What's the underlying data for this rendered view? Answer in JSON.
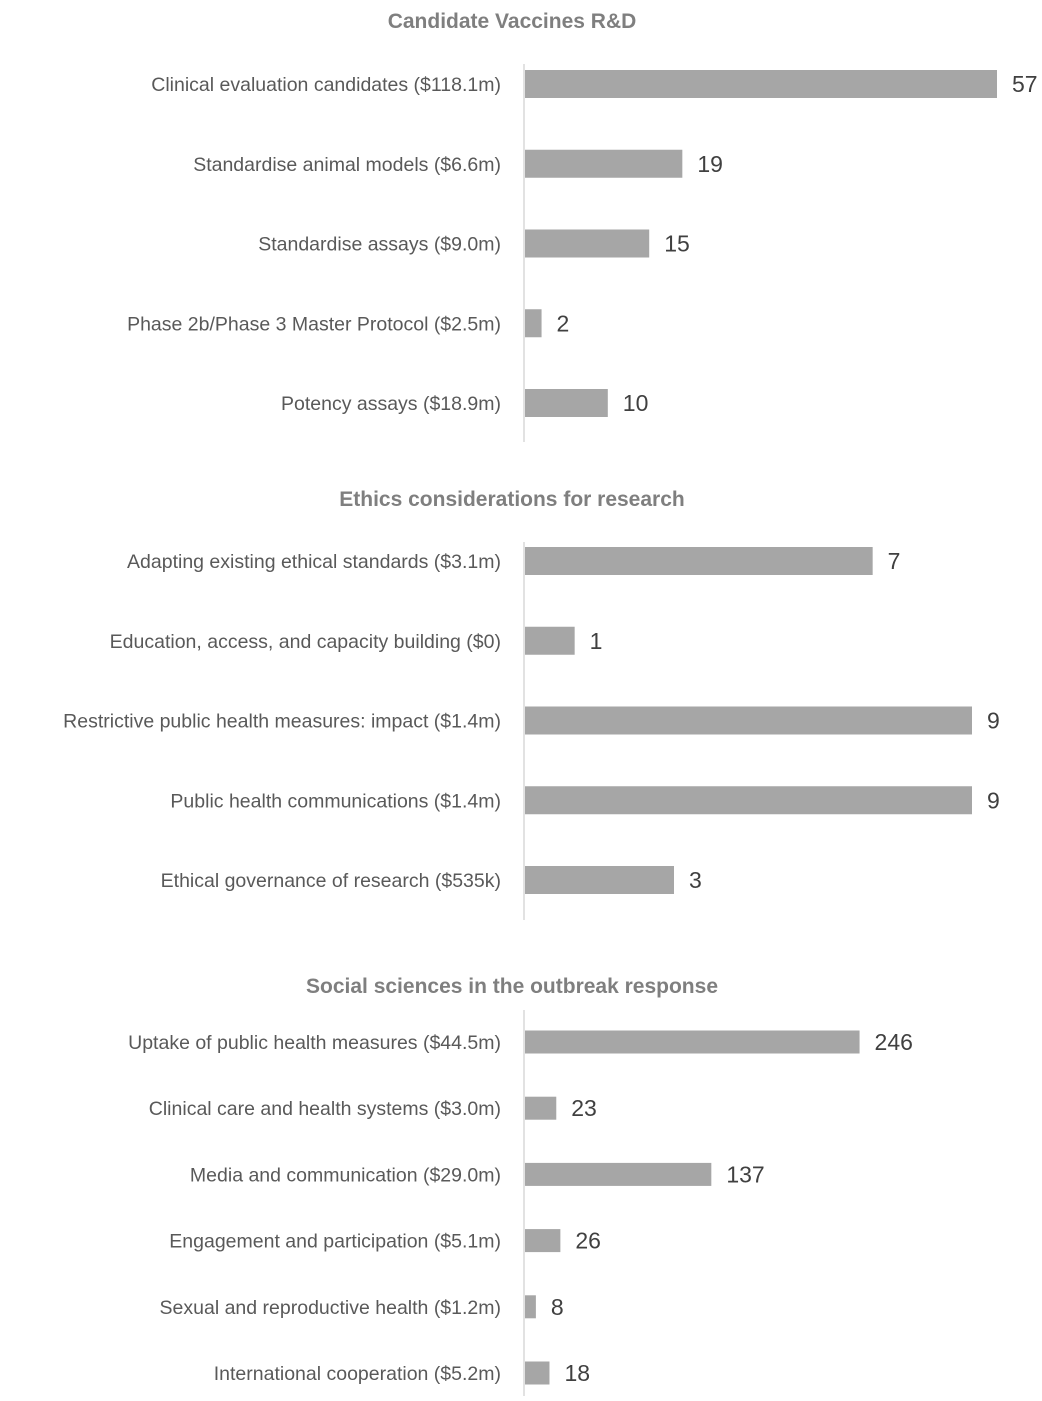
{
  "chart_data": [
    {
      "type": "bar",
      "orientation": "horizontal",
      "title": "Candidate Vaccines R&D",
      "categories": [
        "Clinical evaluation candidates ($118.1m)",
        "Standardise animal models ($6.6m)",
        "Standardise assays ($9.0m)",
        "Phase 2b/Phase 3 Master Protocol ($2.5m)",
        "Potency assays ($18.9m)"
      ],
      "values": [
        57,
        19,
        15,
        2,
        10
      ],
      "xlim": [
        0,
        57
      ],
      "grid": false,
      "data_labels": true,
      "color": "#a6a6a6"
    },
    {
      "type": "bar",
      "orientation": "horizontal",
      "title": "Ethics considerations for research",
      "categories": [
        "Adapting existing ethical standards ($3.1m)",
        "Education, access, and capacity building ($0)",
        "Restrictive public health measures: impact ($1.4m)",
        "Public health communications ($1.4m)",
        "Ethical governance of research ($535k)"
      ],
      "values": [
        7,
        1,
        9,
        9,
        3
      ],
      "xlim": [
        0,
        9
      ],
      "grid": false,
      "data_labels": true,
      "color": "#a6a6a6"
    },
    {
      "type": "bar",
      "orientation": "horizontal",
      "title": "Social sciences in the outbreak response",
      "categories": [
        "Uptake of public health measures ($44.5m)",
        "Clinical care and health systems ($3.0m)",
        "Media and communication ($29.0m)",
        "Engagement and participation ($5.1m)",
        "Sexual and reproductive health ($1.2m)",
        "International cooperation ($5.2m)"
      ],
      "values": [
        246,
        23,
        137,
        26,
        8,
        18
      ],
      "xlim": [
        0,
        300
      ],
      "grid": false,
      "data_labels": true,
      "color": "#a6a6a6"
    }
  ]
}
